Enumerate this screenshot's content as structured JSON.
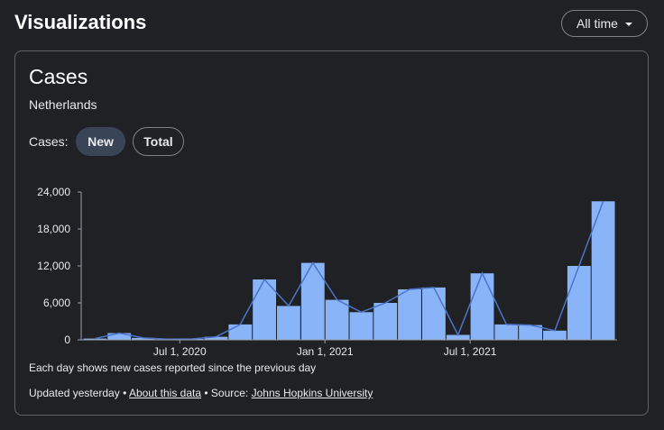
{
  "header": {
    "title": "Visualizations",
    "range_button_label": "All time"
  },
  "card": {
    "title": "Cases",
    "subtitle": "Netherlands",
    "toggle_label": "Cases:",
    "toggle_options": [
      "New",
      "Total"
    ],
    "selected_toggle": "New",
    "caption": "Each day shows new cases reported since the previous day",
    "footer": {
      "updated": "Updated yesterday",
      "separator": "•",
      "about_link": "About this data",
      "source_label": "Source:",
      "source_link": "Johns Hopkins University"
    }
  },
  "colors": {
    "bar": "#8ab4f8",
    "line": "#4c74c7",
    "chip_selected": "#394457",
    "background": "#202124"
  },
  "chart_data": {
    "type": "bar",
    "title": "",
    "xlabel": "",
    "ylabel": "",
    "ylim": [
      0,
      24000
    ],
    "yticks": [
      "0",
      "6,000",
      "12,000",
      "18,000",
      "24,000"
    ],
    "xticks": [
      "Jul 1, 2020",
      "Jan 1, 2021",
      "Jul 1, 2021"
    ],
    "grid": false,
    "x": [
      "2020-03",
      "2020-04",
      "2020-05",
      "2020-06",
      "2020-07",
      "2020-08",
      "2020-09",
      "2020-10",
      "2020-11",
      "2020-12",
      "2021-01",
      "2021-02",
      "2021-03",
      "2021-04",
      "2021-05",
      "2021-06",
      "2021-07",
      "2021-08",
      "2021-09",
      "2021-10",
      "2021-11",
      "2021-12"
    ],
    "series": [
      {
        "values": [
          200,
          1100,
          300,
          100,
          150,
          500,
          2500,
          9800,
          5500,
          12500,
          6500,
          4500,
          6000,
          8200,
          8500,
          800,
          10800,
          2500,
          2400,
          1500,
          12000,
          22500
        ]
      }
    ]
  }
}
